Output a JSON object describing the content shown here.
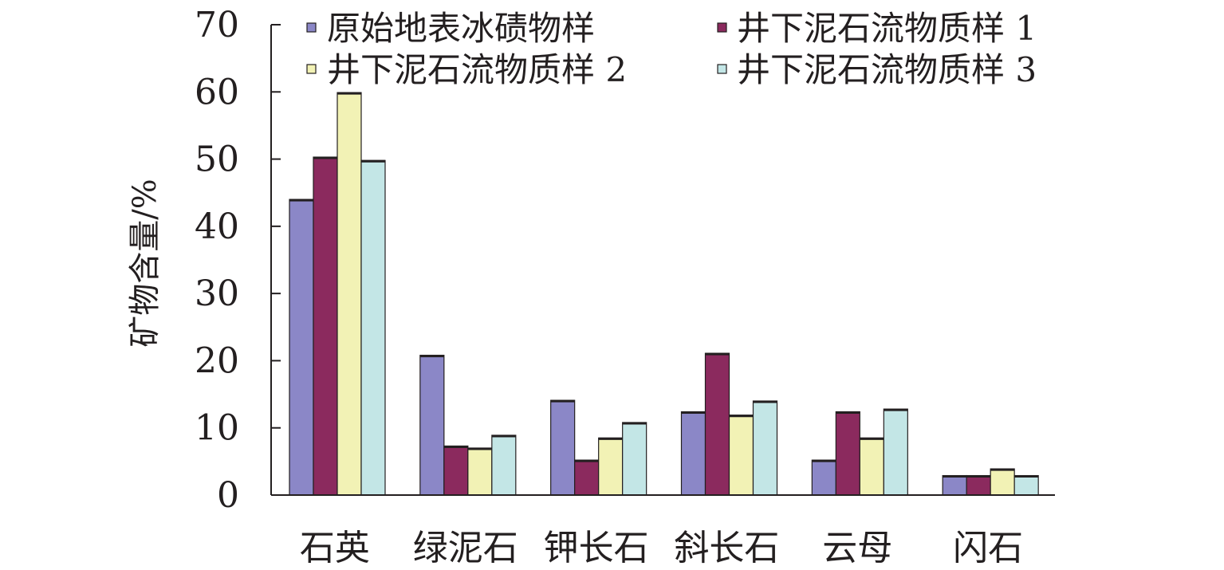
{
  "chart_data": {
    "type": "bar",
    "title": "",
    "xlabel": "",
    "ylabel": "矿物含量/%",
    "ylim": [
      0,
      70
    ],
    "yticks": [
      0,
      10,
      20,
      30,
      40,
      50,
      60,
      70
    ],
    "grid": false,
    "legend_position": "top",
    "categories": [
      "石英",
      "绿泥石",
      "钾长石",
      "斜长石",
      "云母",
      "闪石"
    ],
    "series": [
      {
        "name": "原始地表冰碛物样",
        "color": "#8b87c7",
        "values": [
          44,
          20.8,
          14.1,
          12.4,
          5.2,
          2.9
        ]
      },
      {
        "name": "井下泥石流物质样 1",
        "color": "#8b2a5e",
        "values": [
          50.3,
          7.3,
          5.2,
          21.1,
          12.4,
          2.9
        ]
      },
      {
        "name": "井下泥石流物质样 2",
        "color": "#f2f2b5",
        "values": [
          59.9,
          7.0,
          8.5,
          11.9,
          8.5,
          3.9
        ]
      },
      {
        "name": "井下泥石流物质样 3",
        "color": "#c3e6e6",
        "values": [
          49.8,
          8.9,
          10.8,
          14.0,
          12.8,
          2.9
        ]
      }
    ]
  }
}
